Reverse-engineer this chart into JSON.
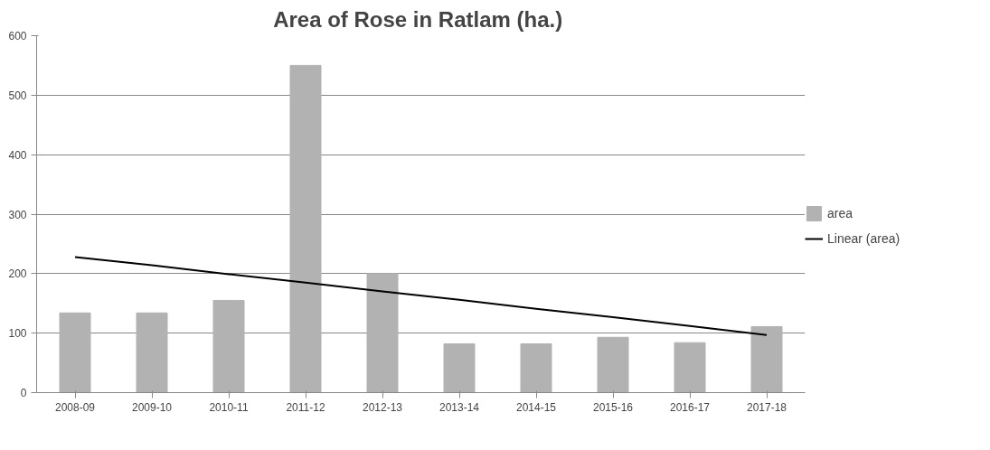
{
  "chart_data": {
    "type": "bar",
    "title": "Area of Rose in Ratlam  (ha.)",
    "categories": [
      "2008-09",
      "2009-10",
      "2010-11",
      "2011-12",
      "2012-13",
      "2013-14",
      "2014-15",
      "2015-16",
      "2016-17",
      "2017-18"
    ],
    "series": [
      {
        "name": "area",
        "color": "#b2b2b2",
        "values": [
          134,
          134,
          155,
          550,
          200,
          82,
          82,
          93,
          84,
          111
        ]
      },
      {
        "name": "Linear (area)",
        "type": "line",
        "color": "#000000",
        "values": [
          228,
          214,
          199,
          185,
          170,
          156,
          141,
          127,
          112,
          97
        ]
      }
    ],
    "ylim": [
      0,
      600
    ],
    "yticks": [
      0,
      100,
      200,
      300,
      400,
      500,
      600
    ],
    "grid": "y",
    "legend": "right"
  }
}
